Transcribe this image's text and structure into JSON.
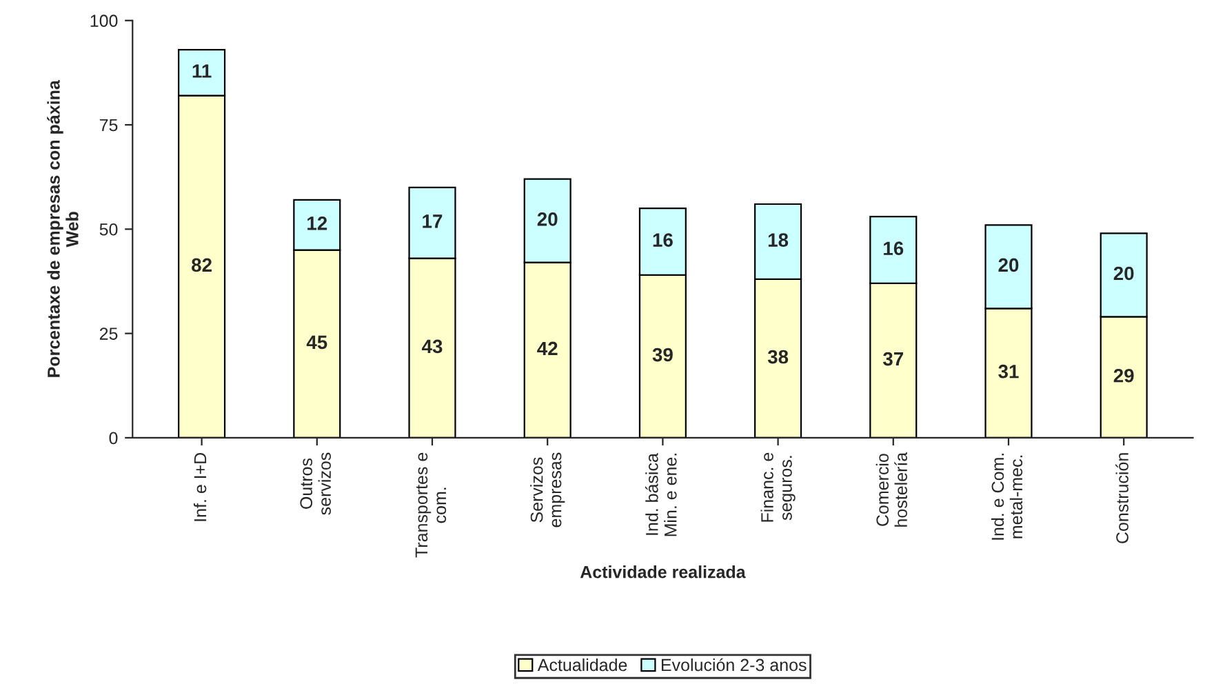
{
  "chart_data": {
    "type": "bar",
    "stacked": true,
    "xlabel": "Actividade realizada",
    "ylabel": "Porcentaxe de empresas con páxina\nWeb",
    "categories": [
      "Inf. e I+D",
      "Outros\nservizos",
      "Transportes e\ncom.",
      "Servizos\nempresas",
      "Ind. básica\nMin. e ene.",
      "Financ. e\nseguros.",
      "Comercio\nhostelería",
      "Ind. e Com.\nmetal-mec.",
      "Construción"
    ],
    "series": [
      {
        "name": "Actualidade",
        "color": "#ffffcc",
        "values": [
          82,
          45,
          43,
          42,
          39,
          38,
          37,
          31,
          29
        ]
      },
      {
        "name": "Evolución 2-3 anos",
        "color": "#ccffff",
        "values": [
          11,
          12,
          17,
          20,
          16,
          18,
          16,
          20,
          20
        ]
      }
    ],
    "ylim": [
      0,
      100
    ],
    "yticks": [
      0,
      25,
      50,
      75,
      100
    ],
    "grid": false,
    "legend": "bottom",
    "data_labels": true
  }
}
